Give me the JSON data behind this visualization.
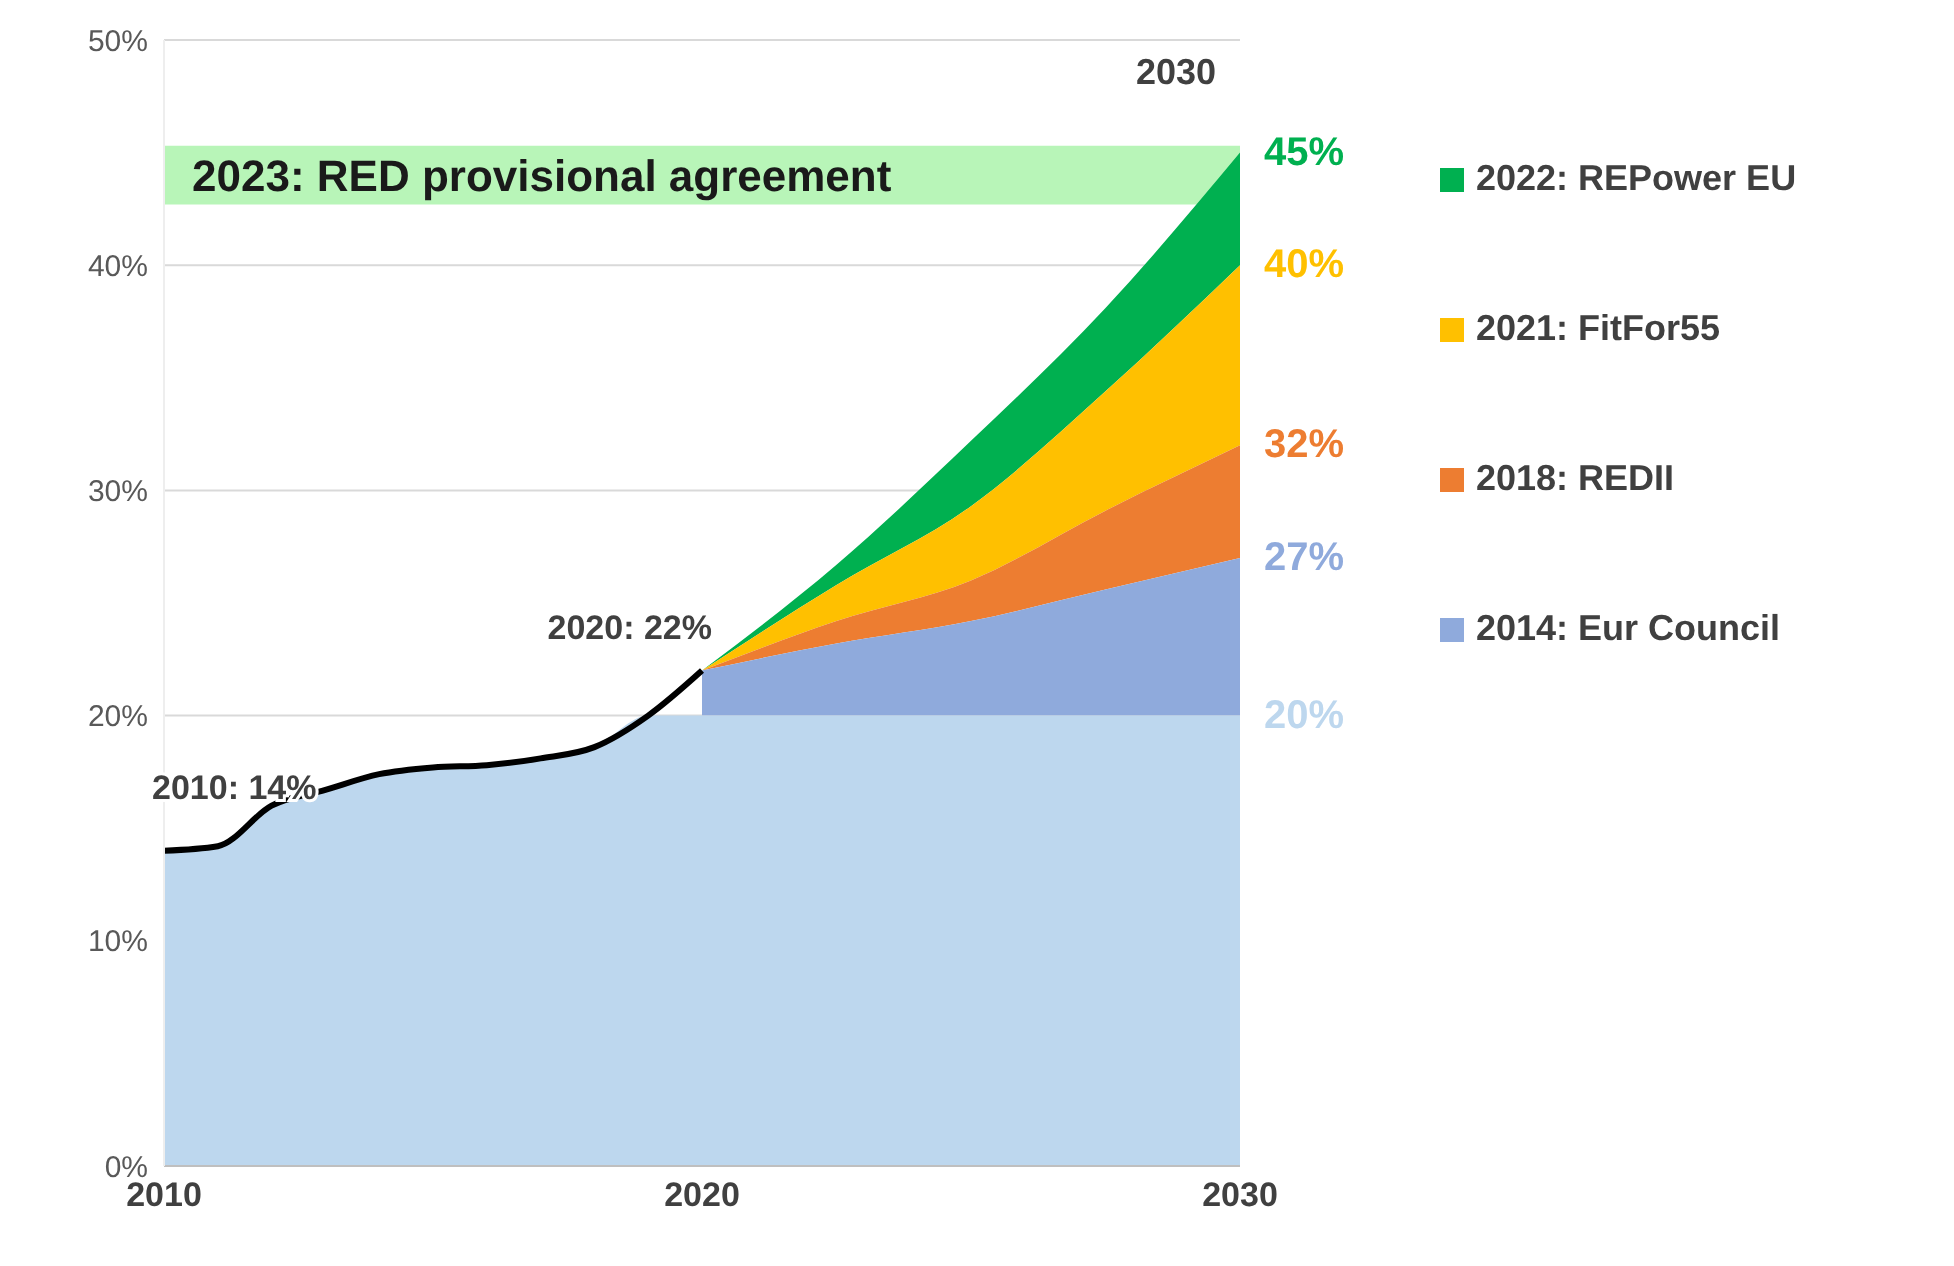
{
  "chart_data": {
    "type": "area",
    "x": [
      2010,
      2011,
      2012,
      2013,
      2014,
      2015,
      2016,
      2017,
      2018,
      2019,
      2020,
      2022.5,
      2025,
      2027.5,
      2030
    ],
    "series": [
      {
        "name": "2022: REPower EU",
        "color": "#00b050",
        "values": [
          null,
          null,
          null,
          null,
          null,
          null,
          null,
          null,
          null,
          null,
          22,
          26.7,
          32.2,
          38.1,
          45
        ],
        "value_labels": [
          null,
          null,
          null,
          null,
          null,
          null,
          null,
          null,
          null,
          null,
          null,
          null,
          null,
          null,
          "45%"
        ]
      },
      {
        "name": "2021: FitFor55",
        "color": "#ffc000",
        "values": [
          null,
          null,
          null,
          null,
          null,
          null,
          null,
          null,
          null,
          null,
          22,
          25.8,
          29.3,
          34.4,
          40
        ],
        "value_labels": [
          null,
          null,
          null,
          null,
          null,
          null,
          null,
          null,
          null,
          null,
          null,
          null,
          null,
          null,
          "40%"
        ]
      },
      {
        "name": "2018: REDII",
        "color": "#ed7d31",
        "values": [
          null,
          null,
          null,
          null,
          null,
          null,
          null,
          null,
          null,
          null,
          22,
          24.2,
          26,
          29.1,
          32
        ],
        "value_labels": [
          null,
          null,
          null,
          null,
          null,
          null,
          null,
          null,
          null,
          null,
          null,
          null,
          null,
          null,
          "32%"
        ]
      },
      {
        "name": "2014: Eur Council",
        "color": "#8faadc",
        "values": [
          null,
          null,
          null,
          null,
          null,
          null,
          null,
          null,
          null,
          null,
          22,
          23.2,
          24.2,
          25.6,
          27
        ],
        "value_labels": [
          null,
          null,
          null,
          null,
          null,
          null,
          null,
          null,
          null,
          null,
          null,
          null,
          null,
          null,
          "27%"
        ]
      },
      {
        "color": "#bdd7ee",
        "values": [
          14,
          14.2,
          16,
          16.7,
          17.4,
          17.7,
          17.8,
          18.1,
          18.6,
          20,
          20,
          20,
          20,
          20,
          20
        ],
        "value_labels": [
          null,
          null,
          null,
          null,
          null,
          null,
          null,
          null,
          null,
          null,
          null,
          null,
          null,
          null,
          "20%"
        ]
      },
      {
        "type": "line",
        "color": "#000000",
        "values": [
          14,
          14.2,
          16,
          16.7,
          17.4,
          17.7,
          17.8,
          18.1,
          18.6,
          20,
          22,
          null,
          null,
          null,
          null
        ],
        "value_labels": [
          "2010: 14%",
          null,
          null,
          null,
          null,
          null,
          null,
          null,
          null,
          null,
          "2020: 22%",
          null,
          null,
          null,
          null
        ]
      }
    ],
    "xlim": [
      2010,
      2030
    ],
    "xticks": [
      2010,
      2020,
      2030
    ],
    "ylim": [
      0,
      50
    ],
    "yticks": [
      {
        "value": 0,
        "label": "0%"
      },
      {
        "value": 10,
        "label": "10%"
      },
      {
        "value": 20,
        "label": "20%"
      },
      {
        "value": 30,
        "label": "30%"
      },
      {
        "value": 40,
        "label": "40%"
      },
      {
        "value": 50,
        "label": "50%"
      }
    ],
    "bands": [
      {
        "axis": "y",
        "from": 42.7,
        "to": 45.3,
        "label": "2023: RED provisional agreement",
        "color": "#b8f5b8"
      }
    ],
    "annotations": [
      "2030"
    ],
    "grid": "y",
    "legend": "right"
  }
}
